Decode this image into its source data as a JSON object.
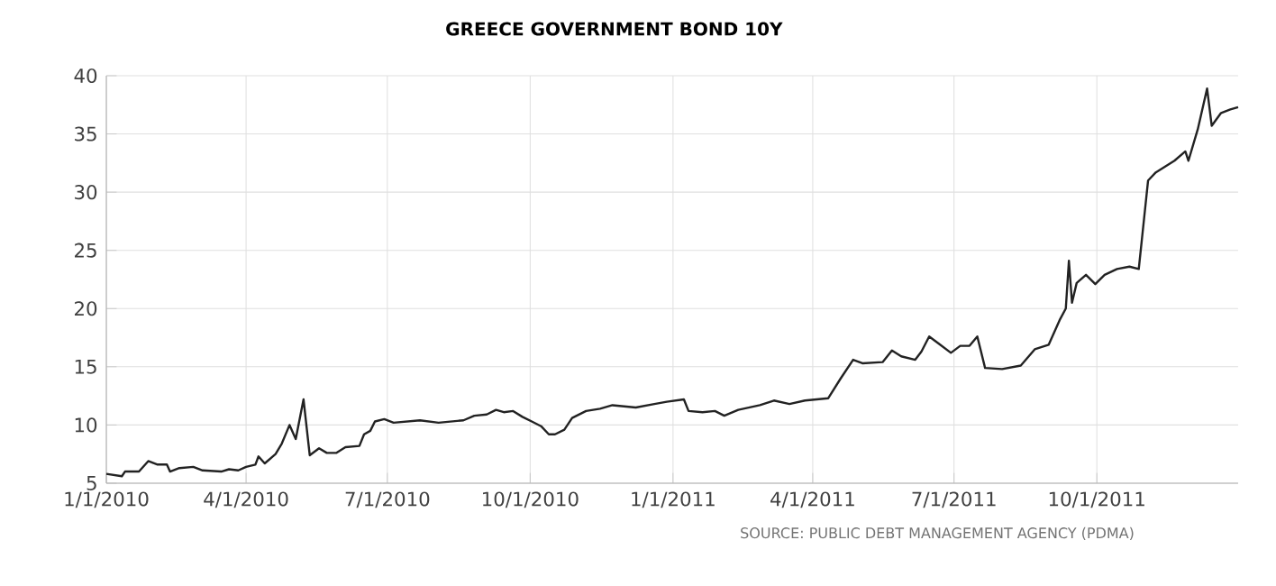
{
  "chart_data": {
    "type": "line",
    "title": "GREECE GOVERNMENT BOND 10Y",
    "annotations": [
      "SOURCE: PUBLIC DEBT MANAGEMENT AGENCY (PDMA)"
    ],
    "xlim": [
      "2010-01-01",
      "2011-12-31"
    ],
    "xticks": [
      {
        "value": "2010-01-01",
        "label": "1/1/2010"
      },
      {
        "value": "2010-04-01",
        "label": "4/1/2010"
      },
      {
        "value": "2010-07-01",
        "label": "7/1/2010"
      },
      {
        "value": "2010-10-01",
        "label": "10/1/2010"
      },
      {
        "value": "2011-01-01",
        "label": "1/1/2011"
      },
      {
        "value": "2011-04-01",
        "label": "4/1/2011"
      },
      {
        "value": "2011-07-01",
        "label": "7/1/2011"
      },
      {
        "value": "2011-10-01",
        "label": "10/1/2011"
      }
    ],
    "ylim": [
      5,
      40
    ],
    "yticks": [
      5,
      10,
      15,
      20,
      25,
      30,
      35,
      40
    ],
    "grid": true,
    "legend": false,
    "marker": "none",
    "line_style": "solid",
    "series": [
      {
        "color": "#222222",
        "x": [
          "2010-01-01",
          "2010-01-11",
          "2010-01-13",
          "2010-01-22",
          "2010-01-28",
          "2010-02-03",
          "2010-02-09",
          "2010-02-11",
          "2010-02-17",
          "2010-02-26",
          "2010-03-04",
          "2010-03-16",
          "2010-03-21",
          "2010-03-27",
          "2010-04-01",
          "2010-04-07",
          "2010-04-09",
          "2010-04-13",
          "2010-04-20",
          "2010-04-24",
          "2010-04-29",
          "2010-05-03",
          "2010-05-08",
          "2010-05-12",
          "2010-05-18",
          "2010-05-23",
          "2010-05-29",
          "2010-06-04",
          "2010-06-13",
          "2010-06-16",
          "2010-06-20",
          "2010-06-23",
          "2010-06-29",
          "2010-07-05",
          "2010-07-22",
          "2010-08-03",
          "2010-08-19",
          "2010-08-26",
          "2010-09-03",
          "2010-09-09",
          "2010-09-14",
          "2010-09-20",
          "2010-09-26",
          "2010-10-02",
          "2010-10-08",
          "2010-10-13",
          "2010-10-17",
          "2010-10-23",
          "2010-10-28",
          "2010-11-06",
          "2010-11-15",
          "2010-11-23",
          "2010-12-08",
          "2010-12-20",
          "2010-12-28",
          "2011-01-08",
          "2011-01-11",
          "2011-01-20",
          "2011-01-28",
          "2011-02-03",
          "2011-02-12",
          "2011-02-26",
          "2011-03-07",
          "2011-03-17",
          "2011-03-27",
          "2011-04-11",
          "2011-04-19",
          "2011-04-27",
          "2011-05-03",
          "2011-05-16",
          "2011-05-22",
          "2011-05-28",
          "2011-06-06",
          "2011-06-10",
          "2011-06-15",
          "2011-06-22",
          "2011-06-29",
          "2011-07-05",
          "2011-07-11",
          "2011-07-16",
          "2011-07-21",
          "2011-08-01",
          "2011-08-13",
          "2011-08-22",
          "2011-08-31",
          "2011-09-07",
          "2011-09-11",
          "2011-09-13",
          "2011-09-15",
          "2011-09-18",
          "2011-09-24",
          "2011-09-30",
          "2011-10-06",
          "2011-10-14",
          "2011-10-22",
          "2011-10-28",
          "2011-11-03",
          "2011-11-08",
          "2011-11-14",
          "2011-11-20",
          "2011-11-27",
          "2011-11-29",
          "2011-12-05",
          "2011-12-11",
          "2011-12-14",
          "2011-12-20",
          "2011-12-26",
          "2011-12-31"
        ],
        "values": [
          5.8,
          5.6,
          6.0,
          6.0,
          6.9,
          6.6,
          6.6,
          6.0,
          6.3,
          6.4,
          6.1,
          6.0,
          6.2,
          6.1,
          6.4,
          6.6,
          7.3,
          6.7,
          7.5,
          8.4,
          10.0,
          8.8,
          12.2,
          7.4,
          8.0,
          7.6,
          7.6,
          8.1,
          8.2,
          9.2,
          9.5,
          10.3,
          10.5,
          10.2,
          10.4,
          10.2,
          10.4,
          10.8,
          10.9,
          11.3,
          11.1,
          11.2,
          10.7,
          10.3,
          9.9,
          9.2,
          9.2,
          9.6,
          10.6,
          11.2,
          11.4,
          11.7,
          11.5,
          11.8,
          12.0,
          12.2,
          11.2,
          11.1,
          11.2,
          10.8,
          11.3,
          11.7,
          12.1,
          11.8,
          12.1,
          12.3,
          14.0,
          15.6,
          15.3,
          15.4,
          16.4,
          15.9,
          15.6,
          16.3,
          17.6,
          16.9,
          16.2,
          16.8,
          16.8,
          17.6,
          14.9,
          14.8,
          15.1,
          16.5,
          16.9,
          19.0,
          20.0,
          24.1,
          20.5,
          22.2,
          22.9,
          22.1,
          22.9,
          23.4,
          23.6,
          23.4,
          31.0,
          31.7,
          32.2,
          32.7,
          33.5,
          32.7,
          35.4,
          38.9,
          35.7,
          36.8,
          37.1,
          37.3
        ]
      }
    ]
  }
}
